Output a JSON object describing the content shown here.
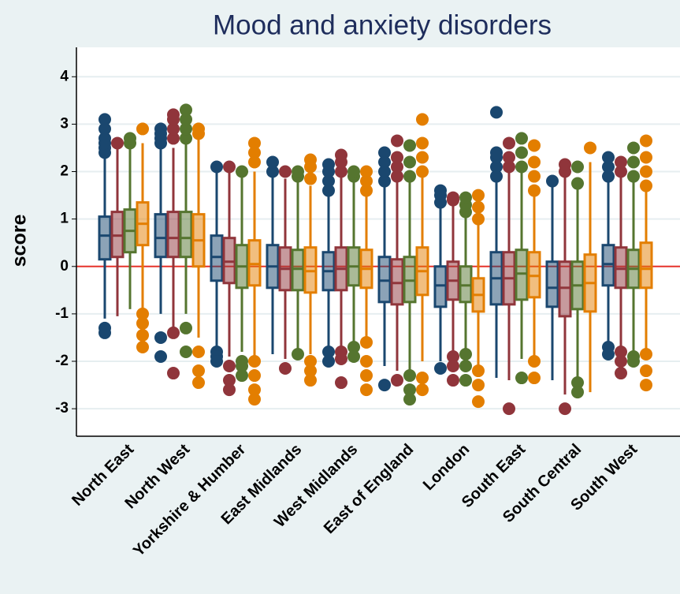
{
  "chart_data": {
    "type": "boxplot",
    "title": "Mood and anxiety disorders",
    "y_label": "score",
    "categories": [
      "North East",
      "North West",
      "Yorkshire & Humber",
      "East Midlands",
      "West Midlands",
      "East of England",
      "London",
      "South East",
      "South Central",
      "South West"
    ],
    "ylim": [
      -3.58,
      4.62
    ],
    "yticks": [
      -3,
      -2,
      -1,
      0,
      1,
      2,
      3,
      4
    ],
    "grid": true,
    "hline": 0,
    "hline_color": "#e8342c",
    "series": [
      {
        "color": "#1a476f",
        "values": [
          {
            "whislo": -1.1,
            "q1": 0.15,
            "med": 0.65,
            "q3": 1.05,
            "whishi": 2.3,
            "outliers": [
              2.4,
              2.5,
              2.6,
              2.7,
              2.9,
              3.1,
              -1.3,
              -1.4
            ]
          },
          {
            "whislo": -1.0,
            "q1": 0.2,
            "med": 0.6,
            "q3": 1.1,
            "whishi": 2.5,
            "outliers": [
              2.6,
              2.7,
              2.8,
              2.9,
              -1.5,
              -1.9
            ]
          },
          {
            "whislo": -1.7,
            "q1": -0.3,
            "med": 0.2,
            "q3": 0.65,
            "whishi": 2.0,
            "outliers": [
              2.1,
              -1.8,
              -1.9,
              -2.0
            ]
          },
          {
            "whislo": -1.85,
            "q1": -0.45,
            "med": 0.0,
            "q3": 0.45,
            "whishi": 1.9,
            "outliers": [
              2.0,
              2.2
            ]
          },
          {
            "whislo": -1.7,
            "q1": -0.5,
            "med": -0.1,
            "q3": 0.3,
            "whishi": 1.5,
            "outliers": [
              1.6,
              1.8,
              2.0,
              2.15,
              -1.8,
              -2.0
            ]
          },
          {
            "whislo": -2.1,
            "q1": -0.75,
            "med": -0.3,
            "q3": 0.2,
            "whishi": 1.7,
            "outliers": [
              1.8,
              2.0,
              2.2,
              2.4,
              -2.5
            ]
          },
          {
            "whislo": -2.0,
            "q1": -0.85,
            "med": -0.4,
            "q3": 0.0,
            "whishi": 1.3,
            "outliers": [
              1.35,
              1.5,
              1.6,
              -2.15
            ]
          },
          {
            "whislo": -2.35,
            "q1": -0.8,
            "med": -0.25,
            "q3": 0.3,
            "whishi": 1.8,
            "outliers": [
              1.9,
              2.1,
              2.3,
              2.4,
              3.25
            ]
          },
          {
            "whislo": -2.4,
            "q1": -0.85,
            "med": -0.45,
            "q3": 0.1,
            "whishi": 1.7,
            "outliers": [
              1.8
            ]
          },
          {
            "whislo": -1.6,
            "q1": -0.4,
            "med": 0.05,
            "q3": 0.45,
            "whishi": 1.8,
            "outliers": [
              1.9,
              2.1,
              2.3,
              -1.7,
              -1.85
            ]
          }
        ]
      },
      {
        "color": "#90353b",
        "values": [
          {
            "whislo": -1.05,
            "q1": 0.2,
            "med": 0.65,
            "q3": 1.15,
            "whishi": 2.55,
            "outliers": [
              2.6
            ]
          },
          {
            "whislo": -1.3,
            "q1": 0.2,
            "med": 0.6,
            "q3": 1.15,
            "whishi": 2.5,
            "outliers": [
              2.7,
              2.9,
              3.1,
              3.2,
              -1.4,
              -2.25
            ]
          },
          {
            "whislo": -1.9,
            "q1": -0.35,
            "med": 0.1,
            "q3": 0.6,
            "whishi": 2.0,
            "outliers": [
              2.1,
              -2.1,
              -2.4,
              -2.6
            ]
          },
          {
            "whislo": -1.95,
            "q1": -0.5,
            "med": -0.05,
            "q3": 0.4,
            "whishi": 1.85,
            "outliers": [
              2.0,
              -2.15
            ]
          },
          {
            "whislo": -1.8,
            "q1": -0.5,
            "med": -0.05,
            "q3": 0.4,
            "whishi": 1.9,
            "outliers": [
              2.0,
              2.2,
              2.35,
              -1.8,
              -1.95,
              -2.45
            ]
          },
          {
            "whislo": -2.2,
            "q1": -0.8,
            "med": -0.35,
            "q3": 0.15,
            "whishi": 1.8,
            "outliers": [
              1.9,
              2.1,
              2.3,
              2.65,
              -2.4
            ]
          },
          {
            "whislo": -1.8,
            "q1": -0.7,
            "med": -0.3,
            "q3": 0.1,
            "whishi": 1.3,
            "outliers": [
              1.4,
              1.45,
              -1.9,
              -2.1,
              -2.4
            ]
          },
          {
            "whislo": -2.4,
            "q1": -0.8,
            "med": -0.25,
            "q3": 0.3,
            "whishi": 2.0,
            "outliers": [
              2.1,
              2.3,
              2.6,
              -3.0
            ]
          },
          {
            "whislo": -2.7,
            "q1": -1.05,
            "med": -0.45,
            "q3": 0.1,
            "whishi": 1.9,
            "outliers": [
              2.0,
              2.15,
              -3.0
            ]
          },
          {
            "whislo": -1.8,
            "q1": -0.45,
            "med": -0.05,
            "q3": 0.4,
            "whishi": 1.9,
            "outliers": [
              2.0,
              2.2,
              -1.8,
              -2.0,
              -2.25
            ]
          }
        ]
      },
      {
        "color": "#55752f",
        "values": [
          {
            "whislo": -0.9,
            "q1": 0.3,
            "med": 0.75,
            "q3": 1.2,
            "whishi": 2.5,
            "outliers": [
              2.6,
              2.7
            ]
          },
          {
            "whislo": -1.0,
            "q1": 0.2,
            "med": 0.6,
            "q3": 1.15,
            "whishi": 2.6,
            "outliers": [
              2.7,
              2.9,
              3.1,
              3.3,
              -1.3,
              -1.8
            ]
          },
          {
            "whislo": -1.8,
            "q1": -0.45,
            "med": 0.0,
            "q3": 0.45,
            "whishi": 1.9,
            "outliers": [
              2.0,
              -2.0,
              -2.1,
              -2.3
            ]
          },
          {
            "whislo": -1.8,
            "q1": -0.5,
            "med": -0.05,
            "q3": 0.35,
            "whishi": 1.8,
            "outliers": [
              1.9,
              2.0,
              -1.85
            ]
          },
          {
            "whislo": -1.6,
            "q1": -0.4,
            "med": 0.0,
            "q3": 0.4,
            "whishi": 1.8,
            "outliers": [
              1.9,
              2.0,
              -1.7,
              -1.9
            ]
          },
          {
            "whislo": -2.2,
            "q1": -0.75,
            "med": -0.3,
            "q3": 0.2,
            "whishi": 1.8,
            "outliers": [
              1.9,
              2.2,
              2.55,
              -2.3,
              -2.6,
              -2.8
            ]
          },
          {
            "whislo": -1.8,
            "q1": -0.75,
            "med": -0.4,
            "q3": 0.0,
            "whishi": 1.1,
            "outliers": [
              1.15,
              1.3,
              1.45,
              -1.85,
              -2.1,
              -2.4
            ]
          },
          {
            "whislo": -1.95,
            "q1": -0.7,
            "med": -0.15,
            "q3": 0.35,
            "whishi": 2.0,
            "outliers": [
              2.1,
              2.4,
              2.7,
              -2.35
            ]
          },
          {
            "whislo": -2.4,
            "q1": -0.9,
            "med": -0.4,
            "q3": 0.1,
            "whishi": 1.7,
            "outliers": [
              1.75,
              2.1,
              -2.45,
              -2.65
            ]
          },
          {
            "whislo": -1.9,
            "q1": -0.45,
            "med": -0.05,
            "q3": 0.35,
            "whishi": 1.85,
            "outliers": [
              1.9,
              2.2,
              2.5,
              -1.9,
              -2.0
            ]
          }
        ]
      },
      {
        "color": "#e37e00",
        "values": [
          {
            "whislo": -0.9,
            "q1": 0.45,
            "med": 0.9,
            "q3": 1.35,
            "whishi": 2.6,
            "outliers": [
              2.9,
              -1.0,
              -1.2,
              -1.45,
              -1.7
            ]
          },
          {
            "whislo": -1.5,
            "q1": 0.0,
            "med": 0.55,
            "q3": 1.1,
            "whishi": 2.7,
            "outliers": [
              2.8,
              2.9,
              -1.8,
              -2.2,
              -2.45
            ]
          },
          {
            "whislo": -1.9,
            "q1": -0.4,
            "med": 0.05,
            "q3": 0.55,
            "whishi": 2.0,
            "outliers": [
              2.2,
              2.4,
              2.6,
              -2.0,
              -2.3,
              -2.6,
              -2.8
            ]
          },
          {
            "whislo": -1.85,
            "q1": -0.55,
            "med": -0.1,
            "q3": 0.4,
            "whishi": 1.7,
            "outliers": [
              1.85,
              2.1,
              2.25,
              -2.0,
              -2.2,
              -2.4
            ]
          },
          {
            "whislo": -1.5,
            "q1": -0.45,
            "med": -0.05,
            "q3": 0.35,
            "whishi": 1.5,
            "outliers": [
              1.6,
              1.8,
              2.0,
              -1.6,
              -2.0,
              -2.3,
              -2.6
            ]
          },
          {
            "whislo": -2.0,
            "q1": -0.6,
            "med": -0.1,
            "q3": 0.4,
            "whishi": 1.9,
            "outliers": [
              2.0,
              2.3,
              2.6,
              3.1,
              -2.35,
              -2.6
            ]
          },
          {
            "whislo": -2.1,
            "q1": -0.95,
            "med": -0.6,
            "q3": -0.25,
            "whishi": 0.9,
            "outliers": [
              1.0,
              1.25,
              1.5,
              -2.2,
              -2.5,
              -2.85
            ]
          },
          {
            "whislo": -1.9,
            "q1": -0.65,
            "med": -0.2,
            "q3": 0.3,
            "whishi": 1.5,
            "outliers": [
              1.6,
              1.9,
              2.2,
              2.55,
              -2.0,
              -2.35
            ]
          },
          {
            "whislo": -2.65,
            "q1": -0.95,
            "med": -0.35,
            "q3": 0.25,
            "whishi": 2.2,
            "outliers": [
              2.5
            ]
          },
          {
            "whislo": -1.8,
            "q1": -0.45,
            "med": -0.05,
            "q3": 0.5,
            "whishi": 1.6,
            "outliers": [
              1.7,
              2.0,
              2.3,
              2.65,
              -1.85,
              -2.2,
              -2.5
            ]
          }
        ]
      }
    ]
  }
}
